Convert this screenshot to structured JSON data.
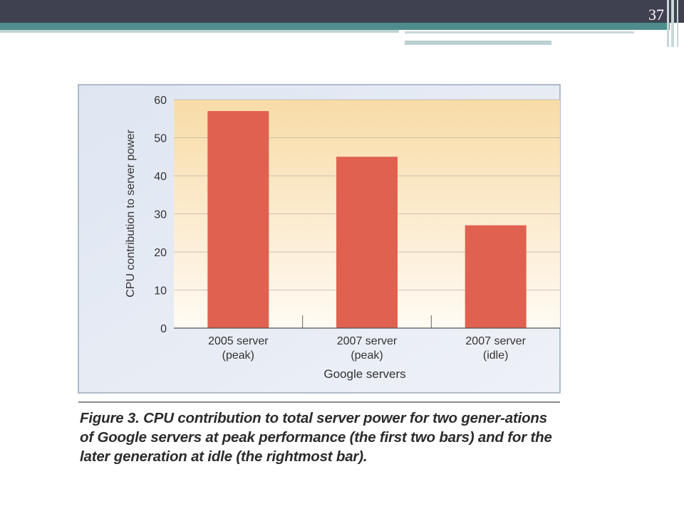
{
  "slide": {
    "page_number": "37"
  },
  "chart_data": {
    "type": "bar",
    "categories": [
      "2005 server\n(peak)",
      "2007 server\n(peak)",
      "2007 server\n(idle)"
    ],
    "values": [
      57,
      45,
      27
    ],
    "title": "",
    "xlabel": "Google servers",
    "ylabel": "CPU contribution to server power",
    "ylim": [
      0,
      60
    ],
    "yticks": [
      0,
      10,
      20,
      30,
      40,
      50,
      60
    ],
    "grid": true,
    "bar_color": "#e0614f",
    "legend": "none"
  },
  "caption": {
    "label": "Figure 3.",
    "text": "CPU contribution to total server power for two gener-ations of Google servers at peak performance (the first two bars) and for the later generation at idle (the rightmost bar)."
  }
}
